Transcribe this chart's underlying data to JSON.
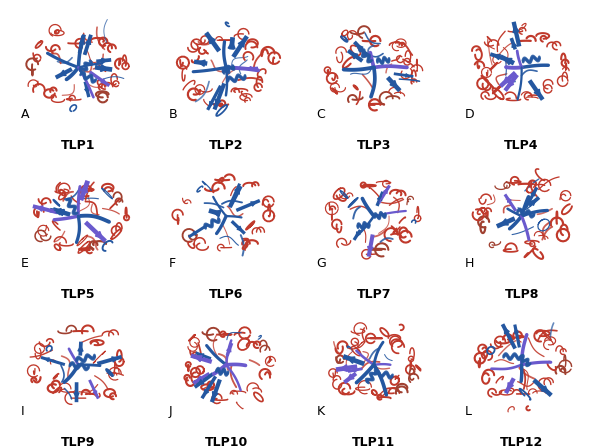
{
  "panels": [
    {
      "label": "A",
      "name": "TLP1",
      "row": 0,
      "col": 0
    },
    {
      "label": "B",
      "name": "TLP2",
      "row": 0,
      "col": 1
    },
    {
      "label": "C",
      "name": "TLP3",
      "row": 0,
      "col": 2
    },
    {
      "label": "D",
      "name": "TLP4",
      "row": 0,
      "col": 3
    },
    {
      "label": "E",
      "name": "TLP5",
      "row": 1,
      "col": 0
    },
    {
      "label": "F",
      "name": "TLP6",
      "row": 1,
      "col": 1
    },
    {
      "label": "G",
      "name": "TLP7",
      "row": 1,
      "col": 2
    },
    {
      "label": "H",
      "name": "TLP8",
      "row": 1,
      "col": 3
    },
    {
      "label": "I",
      "name": "TLP9",
      "row": 2,
      "col": 0
    },
    {
      "label": "J",
      "name": "TLP10",
      "row": 2,
      "col": 1
    },
    {
      "label": "K",
      "name": "TLP11",
      "row": 2,
      "col": 2
    },
    {
      "label": "L",
      "name": "TLP12",
      "row": 2,
      "col": 3
    }
  ],
  "nrows": 3,
  "ncols": 4,
  "figsize": [
    6.0,
    4.46
  ],
  "dpi": 100,
  "background_color": "#ffffff",
  "label_fontsize": 9,
  "name_fontsize": 9,
  "label_color": "#000000",
  "name_color": "#000000",
  "name_fontweight": "bold",
  "orange": "#c0392b",
  "blue": "#2457a0",
  "purple": "#6a5acd"
}
